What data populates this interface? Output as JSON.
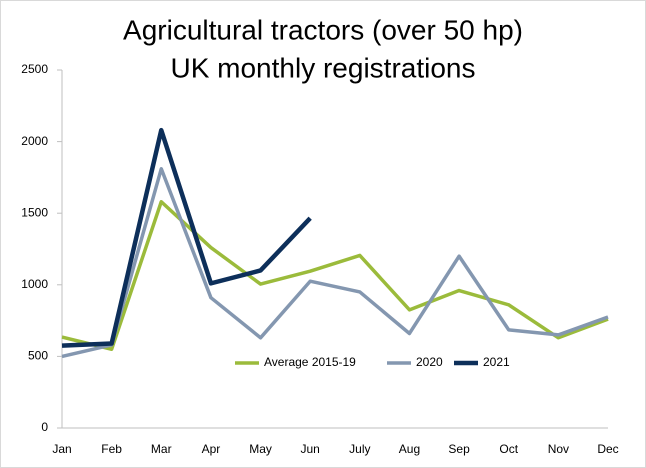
{
  "chart_data": {
    "type": "line",
    "title": "Agricultural tractors (over 50 hp)",
    "subtitle": "UK monthly registrations",
    "categories": [
      "Jan",
      "Feb",
      "Mar",
      "Apr",
      "May",
      "Jun",
      "July",
      "Aug",
      "Sep",
      "Oct",
      "Nov",
      "Dec"
    ],
    "series": [
      {
        "name": "Average 2015-19",
        "color": "#9bbb3b",
        "values": [
          635,
          550,
          1580,
          1260,
          1005,
          1095,
          1205,
          825,
          960,
          860,
          630,
          760
        ]
      },
      {
        "name": "2020",
        "color": "#8497b0",
        "values": [
          500,
          580,
          1810,
          910,
          630,
          1025,
          950,
          660,
          1200,
          685,
          650,
          775
        ]
      },
      {
        "name": "2021",
        "color": "#0d2f5a",
        "values": [
          575,
          590,
          2080,
          1010,
          1100,
          1465,
          null,
          null,
          null,
          null,
          null,
          null
        ]
      }
    ],
    "ylim": [
      0,
      2500
    ],
    "yticks": [
      0,
      500,
      1000,
      1500,
      2000,
      2500
    ],
    "grid": false
  }
}
